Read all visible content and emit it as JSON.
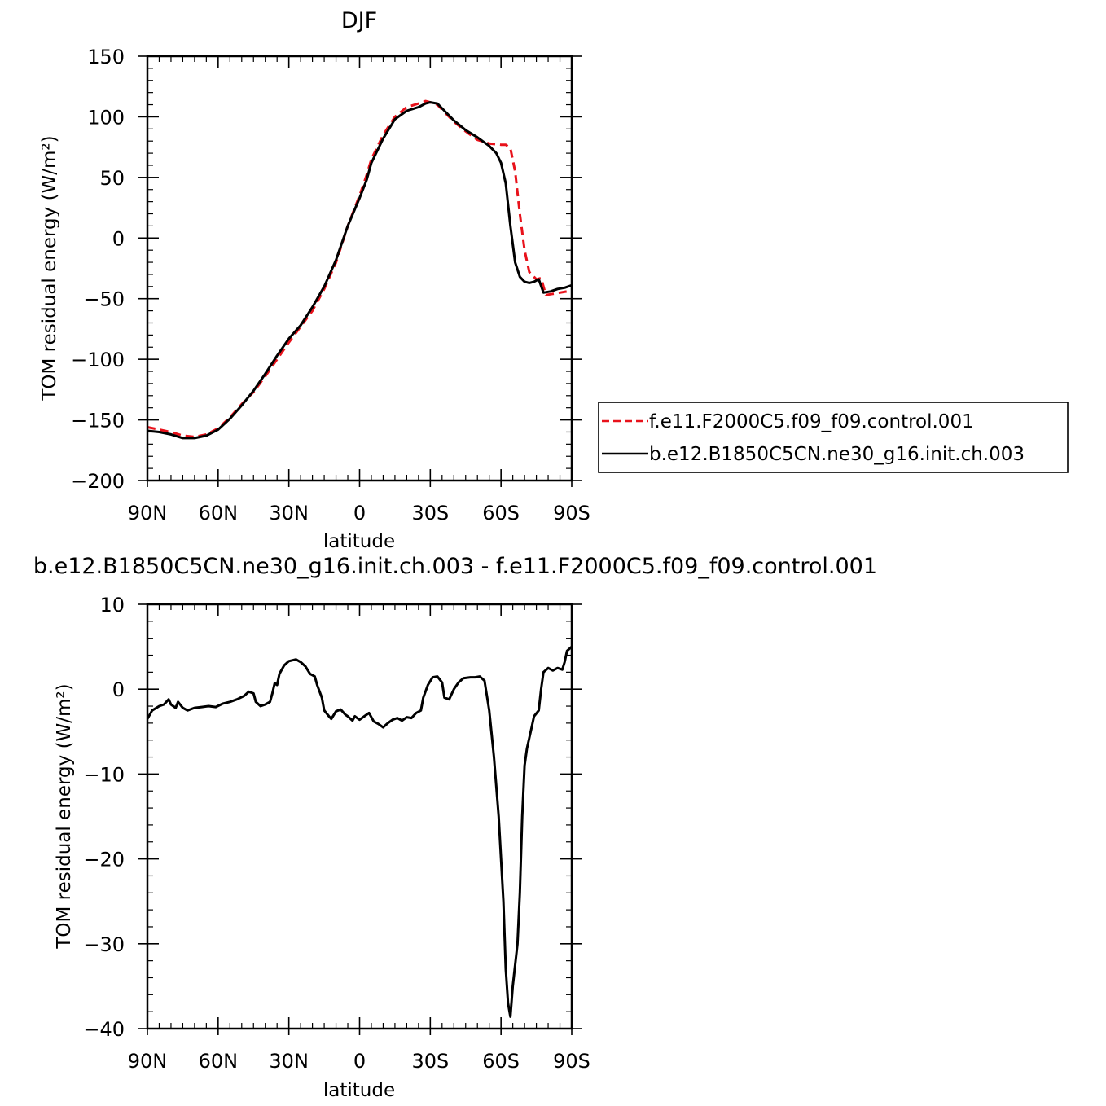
{
  "figure": {
    "top_title": "DJF",
    "bottom_title": "b.e12.B1850C5CN.ne30_g16.init.ch.003 - f.e11.F2000C5.f09_f09.control.001"
  },
  "legend": {
    "entries": [
      {
        "label": "f.e11.F2000C5.f09_f09.control.001",
        "color": "#e8121b",
        "dash": "dashed"
      },
      {
        "label": "b.e12.B1850C5CN.ne30_g16.init.ch.003",
        "color": "#000000",
        "dash": "solid"
      }
    ]
  },
  "chart_data": [
    {
      "type": "line",
      "title": "DJF",
      "xlabel": "latitude",
      "ylabel": "TOM residual energy (W/m²)",
      "xlim": [
        90,
        -90
      ],
      "ylim": [
        -200,
        150
      ],
      "xticks": [
        90,
        60,
        30,
        0,
        -30,
        -60,
        -90
      ],
      "xtick_labels": [
        "90N",
        "60N",
        "30N",
        "0",
        "30S",
        "60S",
        "90S"
      ],
      "yticks": [
        150,
        100,
        50,
        0,
        -50,
        -100,
        -150,
        -200
      ],
      "ytick_labels": [
        "150",
        "100",
        "50",
        "0",
        "−50",
        "−100",
        "−150",
        "−200"
      ],
      "legend_position": "right",
      "series": [
        {
          "name": "f.e11.F2000C5.f09_f09.control.001",
          "color": "#e8121b",
          "style": "dashed",
          "points": [
            [
              90,
              -156
            ],
            [
              85,
              -158
            ],
            [
              80,
              -160
            ],
            [
              75,
              -163
            ],
            [
              70,
              -164
            ],
            [
              65,
              -162
            ],
            [
              60,
              -157
            ],
            [
              55,
              -148
            ],
            [
              50,
              -137
            ],
            [
              45,
              -127
            ],
            [
              40,
              -114
            ],
            [
              35,
              -100
            ],
            [
              30,
              -86
            ],
            [
              25,
              -73
            ],
            [
              20,
              -60
            ],
            [
              15,
              -42
            ],
            [
              10,
              -20
            ],
            [
              5,
              10
            ],
            [
              0,
              35
            ],
            [
              -3,
              52
            ],
            [
              -5,
              65
            ],
            [
              -10,
              85
            ],
            [
              -15,
              100
            ],
            [
              -20,
              108
            ],
            [
              -25,
              111
            ],
            [
              -28,
              113
            ],
            [
              -30,
              112
            ],
            [
              -33,
              110
            ],
            [
              -35,
              106
            ],
            [
              -40,
              96
            ],
            [
              -45,
              88
            ],
            [
              -50,
              81
            ],
            [
              -55,
              78
            ],
            [
              -60,
              77
            ],
            [
              -62,
              77
            ],
            [
              -64,
              74
            ],
            [
              -66,
              55
            ],
            [
              -68,
              20
            ],
            [
              -70,
              -10
            ],
            [
              -72,
              -28
            ],
            [
              -75,
              -34
            ],
            [
              -77,
              -33
            ],
            [
              -79,
              -47
            ],
            [
              -82,
              -46
            ],
            [
              -85,
              -45
            ],
            [
              -88,
              -44
            ],
            [
              -90,
              -43
            ]
          ]
        },
        {
          "name": "b.e12.B1850C5CN.ne30_g16.init.ch.003",
          "color": "#000000",
          "style": "solid",
          "points": [
            [
              90,
              -159
            ],
            [
              85,
              -160
            ],
            [
              80,
              -162
            ],
            [
              75,
              -165
            ],
            [
              70,
              -165
            ],
            [
              65,
              -163
            ],
            [
              60,
              -158
            ],
            [
              55,
              -149
            ],
            [
              50,
              -138
            ],
            [
              45,
              -126
            ],
            [
              40,
              -112
            ],
            [
              35,
              -97
            ],
            [
              30,
              -83
            ],
            [
              25,
              -72
            ],
            [
              20,
              -57
            ],
            [
              15,
              -40
            ],
            [
              10,
              -18
            ],
            [
              5,
              10
            ],
            [
              0,
              33
            ],
            [
              -3,
              48
            ],
            [
              -5,
              62
            ],
            [
              -10,
              82
            ],
            [
              -15,
              98
            ],
            [
              -20,
              105
            ],
            [
              -25,
              108
            ],
            [
              -28,
              111
            ],
            [
              -30,
              112
            ],
            [
              -33,
              111
            ],
            [
              -35,
              107
            ],
            [
              -40,
              97
            ],
            [
              -45,
              89
            ],
            [
              -50,
              83
            ],
            [
              -55,
              76
            ],
            [
              -58,
              70
            ],
            [
              -60,
              62
            ],
            [
              -62,
              45
            ],
            [
              -64,
              10
            ],
            [
              -66,
              -20
            ],
            [
              -68,
              -32
            ],
            [
              -70,
              -36
            ],
            [
              -72,
              -37
            ],
            [
              -74,
              -36
            ],
            [
              -76,
              -34
            ],
            [
              -78,
              -45
            ],
            [
              -81,
              -44
            ],
            [
              -84,
              -42
            ],
            [
              -87,
              -41
            ],
            [
              -90,
              -39
            ]
          ]
        }
      ]
    },
    {
      "type": "line",
      "title": "b.e12.B1850C5CN.ne30_g16.init.ch.003 - f.e11.F2000C5.f09_f09.control.001",
      "xlabel": "latitude",
      "ylabel": "TOM residual energy (W/m²)",
      "xlim": [
        90,
        -90
      ],
      "ylim": [
        -40,
        10
      ],
      "xticks": [
        90,
        60,
        30,
        0,
        -30,
        -60,
        -90
      ],
      "xtick_labels": [
        "90N",
        "60N",
        "30N",
        "0",
        "30S",
        "60S",
        "90S"
      ],
      "yticks": [
        10,
        0,
        -10,
        -20,
        -30,
        -40
      ],
      "ytick_labels": [
        "10",
        "0",
        "−10",
        "−20",
        "−30",
        "−40"
      ],
      "series": [
        {
          "color": "#000000",
          "style": "solid",
          "points": [
            [
              90,
              -3.5
            ],
            [
              88,
              -2.5
            ],
            [
              85,
              -2
            ],
            [
              83,
              -1.8
            ],
            [
              81,
              -1.2
            ],
            [
              80,
              -1.8
            ],
            [
              78,
              -2.2
            ],
            [
              77,
              -1.5
            ],
            [
              75,
              -2.2
            ],
            [
              73,
              -2.5
            ],
            [
              70,
              -2.2
            ],
            [
              67,
              -2.1
            ],
            [
              64,
              -2
            ],
            [
              61,
              -2.1
            ],
            [
              58,
              -1.7
            ],
            [
              55,
              -1.5
            ],
            [
              52,
              -1.2
            ],
            [
              49,
              -0.8
            ],
            [
              47,
              -0.3
            ],
            [
              45,
              -0.5
            ],
            [
              44,
              -1.5
            ],
            [
              42,
              -2
            ],
            [
              40,
              -1.8
            ],
            [
              38,
              -1.5
            ],
            [
              37,
              -0.5
            ],
            [
              36,
              0.7
            ],
            [
              35,
              0.5
            ],
            [
              34,
              1.8
            ],
            [
              32,
              2.8
            ],
            [
              30,
              3.3
            ],
            [
              27,
              3.5
            ],
            [
              25,
              3.2
            ],
            [
              23,
              2.7
            ],
            [
              21,
              1.8
            ],
            [
              19,
              1.5
            ],
            [
              18,
              0.5
            ],
            [
              16,
              -1
            ],
            [
              15,
              -2.5
            ],
            [
              13,
              -3.2
            ],
            [
              12,
              -3.5
            ],
            [
              10,
              -2.6
            ],
            [
              8,
              -2.4
            ],
            [
              6,
              -3
            ],
            [
              5,
              -3.2
            ],
            [
              3,
              -3.7
            ],
            [
              2,
              -3.2
            ],
            [
              0,
              -3.6
            ],
            [
              -2,
              -3.2
            ],
            [
              -4,
              -2.8
            ],
            [
              -6,
              -3.8
            ],
            [
              -8,
              -4.1
            ],
            [
              -10,
              -4.5
            ],
            [
              -12,
              -4
            ],
            [
              -14,
              -3.6
            ],
            [
              -16,
              -3.4
            ],
            [
              -18,
              -3.7
            ],
            [
              -20,
              -3.3
            ],
            [
              -22,
              -3.4
            ],
            [
              -24,
              -2.8
            ],
            [
              -26,
              -2.5
            ],
            [
              -27,
              -1
            ],
            [
              -29,
              0.5
            ],
            [
              -31,
              1.4
            ],
            [
              -33,
              1.5
            ],
            [
              -35,
              0.8
            ],
            [
              -36,
              -1
            ],
            [
              -38,
              -1.2
            ],
            [
              -40,
              0
            ],
            [
              -42,
              0.8
            ],
            [
              -44,
              1.3
            ],
            [
              -47,
              1.4
            ],
            [
              -49,
              1.4
            ],
            [
              -51,
              1.5
            ],
            [
              -53,
              1
            ],
            [
              -55,
              -2.5
            ],
            [
              -57,
              -8
            ],
            [
              -59,
              -15
            ],
            [
              -61,
              -25
            ],
            [
              -62,
              -33
            ],
            [
              -63,
              -37
            ],
            [
              -64,
              -38.6
            ],
            [
              -65,
              -35
            ],
            [
              -67,
              -30
            ],
            [
              -68,
              -24
            ],
            [
              -69,
              -15
            ],
            [
              -70,
              -9
            ],
            [
              -71,
              -7
            ],
            [
              -73,
              -4.5
            ],
            [
              -74,
              -3.2
            ],
            [
              -76,
              -2.5
            ],
            [
              -77,
              0
            ],
            [
              -78,
              2
            ],
            [
              -80,
              2.5
            ],
            [
              -82,
              2.2
            ],
            [
              -84,
              2.5
            ],
            [
              -86,
              2.3
            ],
            [
              -87,
              3.2
            ],
            [
              -88,
              4.5
            ],
            [
              -90,
              5
            ]
          ]
        }
      ]
    }
  ]
}
